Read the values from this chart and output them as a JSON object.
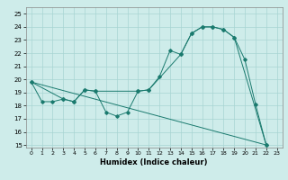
{
  "xlabel": "Humidex (Indice chaleur)",
  "xlim": [
    -0.5,
    23.5
  ],
  "ylim": [
    14.8,
    25.5
  ],
  "yticks": [
    15,
    16,
    17,
    18,
    19,
    20,
    21,
    22,
    23,
    24,
    25
  ],
  "xticks": [
    0,
    1,
    2,
    3,
    4,
    5,
    6,
    7,
    8,
    9,
    10,
    11,
    12,
    13,
    14,
    15,
    16,
    17,
    18,
    19,
    20,
    21,
    22,
    23
  ],
  "background_color": "#ceecea",
  "grid_color": "#a8d5d2",
  "line_color": "#1a7a6e",
  "line1": {
    "x": [
      0,
      1,
      2,
      3,
      4,
      5,
      6,
      7,
      8,
      9,
      10,
      11,
      12,
      13,
      14,
      15,
      16,
      17,
      18,
      19,
      20,
      21,
      22
    ],
    "y": [
      19.8,
      18.3,
      18.3,
      18.5,
      18.3,
      19.2,
      19.1,
      17.5,
      17.2,
      17.5,
      19.1,
      19.2,
      20.2,
      22.2,
      21.9,
      23.5,
      24.0,
      24.0,
      23.8,
      23.2,
      21.5,
      18.1,
      15.0
    ]
  },
  "line2": {
    "x": [
      0,
      3,
      4,
      5,
      6,
      10,
      11,
      14,
      15,
      16,
      17,
      18,
      19,
      22
    ],
    "y": [
      19.8,
      18.5,
      18.3,
      19.2,
      19.1,
      19.1,
      19.2,
      21.9,
      23.5,
      24.0,
      24.0,
      23.8,
      23.2,
      15.0
    ]
  },
  "line3": {
    "x": [
      0,
      22
    ],
    "y": [
      19.8,
      15.0
    ]
  }
}
